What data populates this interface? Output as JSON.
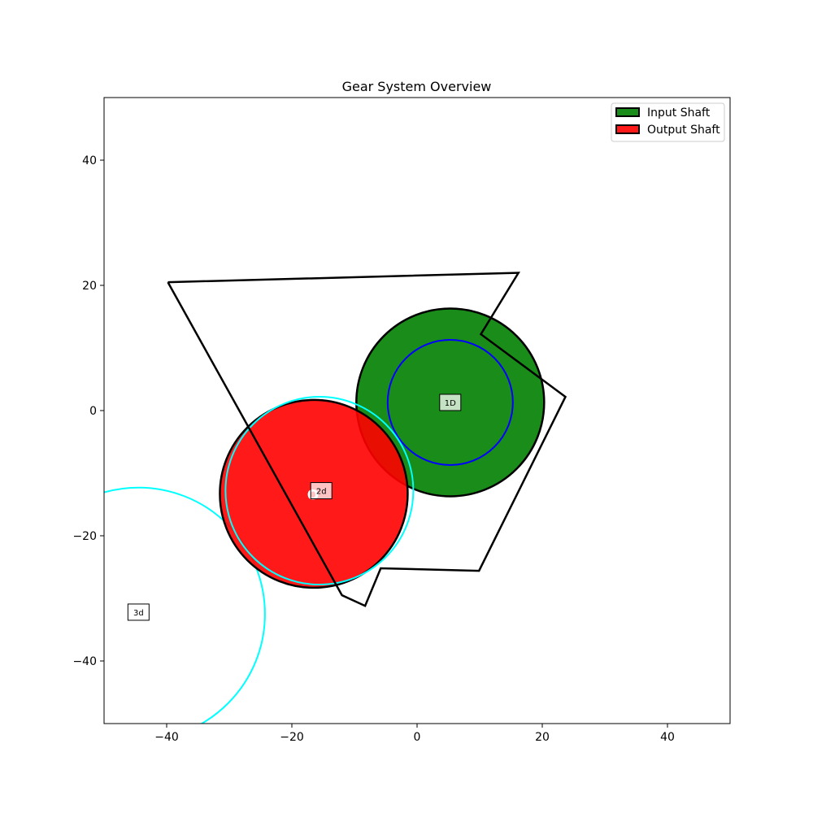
{
  "chart_data": {
    "type": "diagram",
    "title": "Gear System Overview",
    "xlim": [
      -50,
      50
    ],
    "ylim": [
      -50,
      50
    ],
    "x_ticks": [
      -40,
      -20,
      0,
      20,
      40
    ],
    "y_ticks": [
      -40,
      -20,
      0,
      20,
      40
    ],
    "x_tick_labels": [
      "−40",
      "−20",
      "0",
      "20",
      "40"
    ],
    "y_tick_labels": [
      "−40",
      "−20",
      "0",
      "20",
      "40"
    ],
    "housing_outline": [
      [
        -39.8,
        20.5
      ],
      [
        16.2,
        22.0
      ],
      [
        10.2,
        12.2
      ],
      [
        23.7,
        2.2
      ],
      [
        9.9,
        -25.6
      ],
      [
        -5.8,
        -25.2
      ],
      [
        -8.3,
        -31.2
      ],
      [
        -12.0,
        -29.5
      ],
      [
        -39.8,
        20.5
      ]
    ],
    "gears": [
      {
        "id": "input",
        "label": "1D",
        "cx": 5.3,
        "cy": 1.3,
        "r": 15.0,
        "fill": "#008000",
        "opacity": 0.9,
        "pitch_r": 10.0,
        "pitch_color": "#0000ff"
      },
      {
        "id": "output",
        "label": "2d",
        "cx": -16.5,
        "cy": -13.3,
        "r": 15.0,
        "fill": "#ff0000",
        "opacity": 0.9,
        "text": "O"
      }
    ],
    "circles": [
      {
        "id": "cyan-circle-1",
        "cx": -15.6,
        "cy": -12.8,
        "r": 15.0,
        "color": "#00ffff"
      },
      {
        "id": "cyan-circle-2",
        "cx": -44.5,
        "cy": -32.5,
        "r": 20.2,
        "color": "#00ffff"
      }
    ],
    "markers": [
      {
        "label": "1D",
        "x": 5.3,
        "y": 1.3
      },
      {
        "label": "2d",
        "x": -15.3,
        "y": -12.8
      },
      {
        "label": "3d",
        "x": -44.5,
        "y": -32.2
      }
    ],
    "legend": {
      "placement": "top-right",
      "entries": [
        {
          "label": "Input Shaft",
          "color": "#008000"
        },
        {
          "label": "Output Shaft",
          "color": "#ff0000"
        }
      ]
    }
  }
}
